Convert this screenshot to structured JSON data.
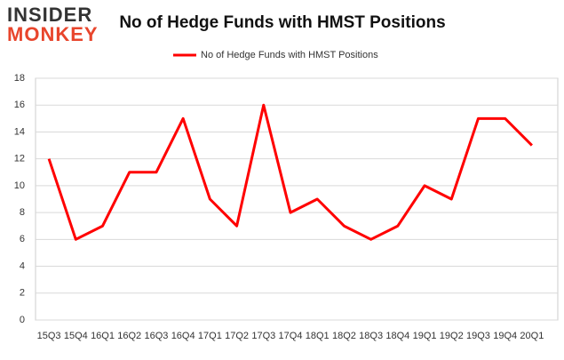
{
  "logo": {
    "top": "INSIDER",
    "bottom": "MONKEY"
  },
  "chart_data": {
    "type": "line",
    "title": "No of Hedge Funds with HMST Positions",
    "categories": [
      "15Q3",
      "15Q4",
      "16Q1",
      "16Q2",
      "16Q3",
      "16Q4",
      "17Q1",
      "17Q2",
      "17Q3",
      "17Q4",
      "18Q1",
      "18Q2",
      "18Q3",
      "18Q4",
      "19Q1",
      "19Q2",
      "19Q3",
      "19Q4",
      "20Q1"
    ],
    "series": [
      {
        "name": "No of Hedge Funds with HMST Positions",
        "color": "#ff0000",
        "values": [
          12,
          6,
          7,
          11,
          11,
          15,
          9,
          7,
          16,
          8,
          9,
          7,
          6,
          7,
          10,
          9,
          15,
          15,
          13
        ]
      }
    ],
    "ylim": [
      0,
      18
    ],
    "yticks": [
      0,
      2,
      4,
      6,
      8,
      10,
      12,
      14,
      16,
      18
    ],
    "grid": true,
    "legend": "top"
  }
}
